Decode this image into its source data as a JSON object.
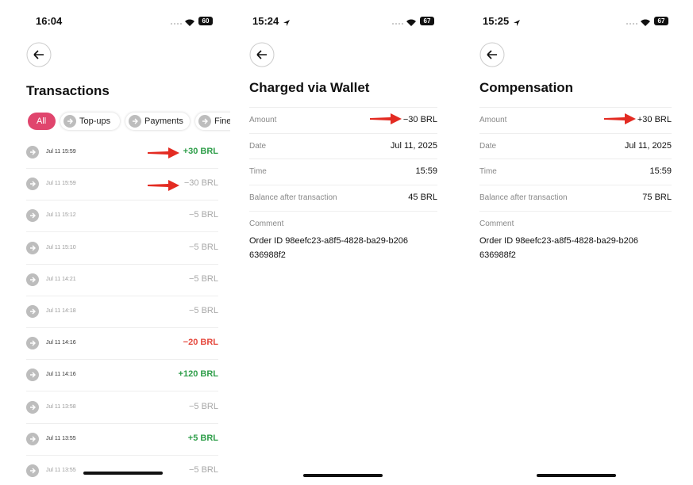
{
  "screens": [
    {
      "status": {
        "time": "16:04",
        "battery": "60"
      },
      "title": "Transactions",
      "filters": [
        "All",
        "Top-ups",
        "Payments",
        "Fine"
      ],
      "rows": [
        {
          "date": "Jul 11 15:59",
          "amount": "+30 BRL",
          "color": "#2f9e4a"
        },
        {
          "date": "Jul 11 15:59",
          "amount": "−30 BRL",
          "color": "#a8a8a8"
        },
        {
          "date": "Jul 11 15:12",
          "amount": "−5 BRL",
          "color": "#a8a8a8"
        },
        {
          "date": "Jul 11 15:10",
          "amount": "−5 BRL",
          "color": "#a8a8a8"
        },
        {
          "date": "Jul 11 14:21",
          "amount": "−5 BRL",
          "color": "#a8a8a8"
        },
        {
          "date": "Jul 11 14:18",
          "amount": "−5 BRL",
          "color": "#a8a8a8"
        },
        {
          "date": "Jul 11 14:16",
          "amount": "−20 BRL",
          "color": "#e5483d"
        },
        {
          "date": "Jul 11 14:16",
          "amount": "+120 BRL",
          "color": "#2f9e4a"
        },
        {
          "date": "Jul 11 13:58",
          "amount": "−5 BRL",
          "color": "#a8a8a8"
        },
        {
          "date": "Jul 11 13:55",
          "amount": "+5 BRL",
          "color": "#2f9e4a"
        },
        {
          "date": "Jul 11 13:55",
          "amount": "−5 BRL",
          "color": "#a8a8a8"
        }
      ]
    },
    {
      "status": {
        "time": "15:24",
        "battery": "67"
      },
      "title": "Charged via Wallet",
      "fields": [
        {
          "label": "Amount",
          "value": "−30 BRL"
        },
        {
          "label": "Date",
          "value": "Jul 11, 2025"
        },
        {
          "label": "Time",
          "value": "15:59"
        },
        {
          "label": "Balance after transaction",
          "value": "45 BRL"
        }
      ],
      "comment": {
        "label": "Comment",
        "text": "Order ID 98eefc23-a8f5-4828-ba29-b206636988f2"
      }
    },
    {
      "status": {
        "time": "15:25",
        "battery": "67"
      },
      "title": "Compensation",
      "fields": [
        {
          "label": "Amount",
          "value": "+30 BRL"
        },
        {
          "label": "Date",
          "value": "Jul 11, 2025"
        },
        {
          "label": "Time",
          "value": "15:59"
        },
        {
          "label": "Balance after transaction",
          "value": "75 BRL"
        }
      ],
      "comment": {
        "label": "Comment",
        "text": "Order ID 98eefc23-a8f5-4828-ba29-b206636988f2"
      }
    }
  ]
}
